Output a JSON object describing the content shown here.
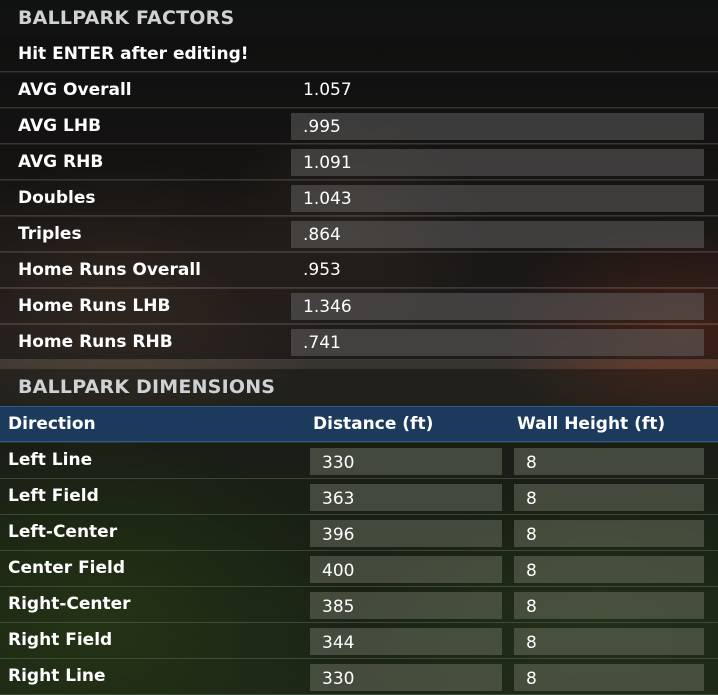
{
  "factors": {
    "title": "BALLPARK FACTORS",
    "note": "Hit ENTER after editing!",
    "rows": [
      {
        "label": "AVG Overall",
        "value": "1.057",
        "editable": false
      },
      {
        "label": "AVG LHB",
        "value": ".995",
        "editable": true
      },
      {
        "label": "AVG RHB",
        "value": "1.091",
        "editable": true
      },
      {
        "label": "Doubles",
        "value": "1.043",
        "editable": true
      },
      {
        "label": "Triples",
        "value": ".864",
        "editable": true
      },
      {
        "label": "Home Runs Overall",
        "value": ".953",
        "editable": false
      },
      {
        "label": "Home Runs LHB",
        "value": "1.346",
        "editable": true
      },
      {
        "label": "Home Runs RHB",
        "value": ".741",
        "editable": true
      }
    ]
  },
  "dimensions": {
    "title": "BALLPARK DIMENSIONS",
    "headers": {
      "direction": "Direction",
      "distance": "Distance (ft)",
      "wall": "Wall Height (ft)"
    },
    "rows": [
      {
        "direction": "Left Line",
        "distance": "330",
        "wall": "8"
      },
      {
        "direction": "Left Field",
        "distance": "363",
        "wall": "8"
      },
      {
        "direction": "Left-Center",
        "distance": "396",
        "wall": "8"
      },
      {
        "direction": "Center Field",
        "distance": "400",
        "wall": "8"
      },
      {
        "direction": "Right-Center",
        "distance": "385",
        "wall": "8"
      },
      {
        "direction": "Right Field",
        "distance": "344",
        "wall": "8"
      },
      {
        "direction": "Right Line",
        "distance": "330",
        "wall": "8"
      }
    ]
  },
  "colors": {
    "header_bar": "#1b3a5c",
    "section_title": "#cfd2d4"
  }
}
